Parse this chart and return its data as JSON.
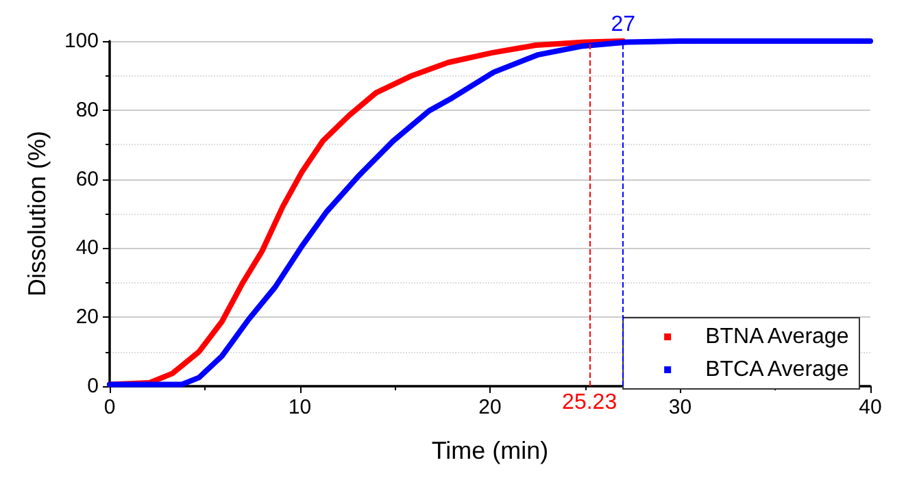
{
  "chart_data": {
    "type": "line",
    "xlabel": "Time (min)",
    "ylabel": "Dissolution (%)",
    "xlim": [
      0,
      40
    ],
    "xticks": [
      0,
      10,
      20,
      30,
      40
    ],
    "ylim": [
      0,
      100
    ],
    "yticks": [
      0,
      20,
      40,
      60,
      80,
      100
    ],
    "grid": "y",
    "legend": "bottom right",
    "series": [
      {
        "name": "BTNA Average",
        "color": "#ff0000",
        "x": [
          0,
          2.1,
          3.3,
          4.7,
          5.9,
          7.0,
          8.0,
          9.1,
          10.1,
          11.2,
          12.6,
          14.0,
          15.9,
          17.8,
          20.1,
          22.4,
          25.0,
          27.0
        ],
        "values": [
          0.5,
          1,
          3.7,
          10,
          18.7,
          30,
          39,
          52,
          62,
          71,
          78.5,
          85,
          90,
          93.8,
          96.6,
          98.8,
          99.7,
          100
        ]
      },
      {
        "name": "BTCA Average",
        "color": "#0000ff",
        "x": [
          0,
          3.8,
          4.7,
          5.9,
          7.3,
          8.7,
          10.1,
          11.4,
          13.1,
          14.9,
          16.8,
          18.0,
          20.2,
          22.5,
          24.8,
          27.2,
          30.0,
          35.0,
          40.0
        ],
        "values": [
          0.5,
          0.5,
          2.5,
          8.7,
          19.3,
          28.7,
          40.5,
          50.5,
          61,
          71,
          79.8,
          83.5,
          91,
          96,
          98.5,
          99.7,
          100,
          100,
          100
        ]
      }
    ],
    "ref_lines": [
      {
        "axis": "x",
        "value": 25.23,
        "label": "25.23",
        "color": "#ff0000",
        "line_style": "dashed"
      },
      {
        "axis": "x",
        "value": 27,
        "label": "27",
        "color": "#0000ff",
        "line_style": "dashed"
      }
    ]
  }
}
